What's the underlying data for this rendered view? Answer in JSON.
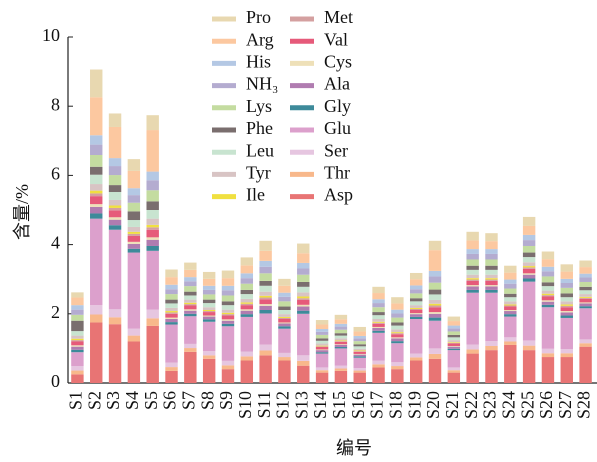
{
  "chart_data": {
    "type": "stacked_bar",
    "x_label": "编号",
    "y_label": "含量/%",
    "categories": [
      "S1",
      "S2",
      "S3",
      "S4",
      "S5",
      "S6",
      "S7",
      "S8",
      "S9",
      "S10",
      "S11",
      "S12",
      "S13",
      "S14",
      "S15",
      "S16",
      "S17",
      "S18",
      "S19",
      "S20",
      "S21",
      "S22",
      "S23",
      "S24",
      "S25",
      "S26",
      "S27",
      "S28"
    ],
    "ylim": [
      0,
      10
    ],
    "yticks": [
      0,
      2,
      4,
      6,
      8,
      10
    ],
    "series": [
      {
        "name": "Asp",
        "color": "#e87474",
        "values": [
          0.25,
          1.75,
          1.7,
          1.2,
          1.65,
          0.35,
          0.9,
          0.7,
          0.4,
          0.65,
          0.8,
          0.65,
          0.5,
          0.3,
          0.35,
          0.3,
          0.45,
          0.4,
          0.65,
          0.7,
          0.3,
          0.85,
          0.95,
          1.1,
          0.95,
          0.75,
          0.75,
          1.05
        ]
      },
      {
        "name": "Thr",
        "color": "#f8b88b",
        "values": [
          0.11,
          0.23,
          0.2,
          0.17,
          0.22,
          0.11,
          0.11,
          0.1,
          0.11,
          0.12,
          0.14,
          0.1,
          0.14,
          0.07,
          0.07,
          0.06,
          0.09,
          0.09,
          0.09,
          0.14,
          0.07,
          0.12,
          0.12,
          0.1,
          0.13,
          0.11,
          0.11,
          0.1
        ]
      },
      {
        "name": "Ser",
        "color": "#e6c6e0",
        "values": [
          0.13,
          0.27,
          0.23,
          0.2,
          0.25,
          0.13,
          0.12,
          0.12,
          0.13,
          0.14,
          0.17,
          0.12,
          0.16,
          0.08,
          0.08,
          0.07,
          0.11,
          0.11,
          0.11,
          0.16,
          0.08,
          0.14,
          0.14,
          0.12,
          0.15,
          0.13,
          0.12,
          0.11
        ]
      },
      {
        "name": "Glu",
        "color": "#dca0cc",
        "values": [
          0.4,
          2.5,
          2.3,
          2.2,
          1.7,
          1.1,
          0.8,
          0.85,
          1.0,
          1.0,
          0.9,
          0.7,
          1.2,
          0.4,
          0.5,
          0.3,
          0.8,
          0.55,
          1.0,
          0.8,
          0.5,
          1.5,
          1.4,
          0.6,
          1.7,
          1.2,
          0.9,
          0.9
        ]
      },
      {
        "name": "Gly",
        "color": "#3d8a9a",
        "values": [
          0.07,
          0.15,
          0.13,
          0.11,
          0.14,
          0.07,
          0.07,
          0.07,
          0.07,
          0.08,
          0.1,
          0.07,
          0.09,
          0.04,
          0.04,
          0.04,
          0.06,
          0.06,
          0.06,
          0.09,
          0.04,
          0.08,
          0.08,
          0.07,
          0.09,
          0.07,
          0.07,
          0.06
        ]
      },
      {
        "name": "Ala",
        "color": "#b07cb0",
        "values": [
          0.09,
          0.19,
          0.16,
          0.14,
          0.18,
          0.09,
          0.09,
          0.08,
          0.09,
          0.1,
          0.12,
          0.08,
          0.12,
          0.06,
          0.06,
          0.05,
          0.08,
          0.08,
          0.08,
          0.11,
          0.06,
          0.1,
          0.1,
          0.09,
          0.11,
          0.09,
          0.09,
          0.08
        ]
      },
      {
        "name": "Cys",
        "color": "#eee0b8",
        "values": [
          0.04,
          0.08,
          0.07,
          0.06,
          0.07,
          0.04,
          0.04,
          0.03,
          0.04,
          0.04,
          0.05,
          0.03,
          0.05,
          0.02,
          0.02,
          0.02,
          0.03,
          0.03,
          0.03,
          0.05,
          0.02,
          0.04,
          0.04,
          0.03,
          0.04,
          0.04,
          0.04,
          0.03
        ]
      },
      {
        "name": "Val",
        "color": "#e65a7a",
        "values": [
          0.11,
          0.23,
          0.2,
          0.17,
          0.22,
          0.11,
          0.11,
          0.1,
          0.11,
          0.12,
          0.14,
          0.1,
          0.14,
          0.07,
          0.07,
          0.06,
          0.09,
          0.09,
          0.09,
          0.14,
          0.07,
          0.12,
          0.12,
          0.1,
          0.13,
          0.11,
          0.11,
          0.1
        ]
      },
      {
        "name": "Met",
        "color": "#d4a0a0",
        "values": [
          0.04,
          0.08,
          0.07,
          0.06,
          0.07,
          0.04,
          0.04,
          0.03,
          0.04,
          0.04,
          0.05,
          0.03,
          0.05,
          0.02,
          0.02,
          0.02,
          0.03,
          0.03,
          0.03,
          0.05,
          0.02,
          0.04,
          0.04,
          0.03,
          0.04,
          0.04,
          0.04,
          0.03
        ]
      },
      {
        "name": "Ile",
        "color": "#f0e040",
        "values": [
          0.04,
          0.08,
          0.07,
          0.06,
          0.07,
          0.04,
          0.04,
          0.03,
          0.04,
          0.04,
          0.05,
          0.03,
          0.05,
          0.02,
          0.02,
          0.02,
          0.03,
          0.03,
          0.03,
          0.05,
          0.02,
          0.04,
          0.04,
          0.03,
          0.04,
          0.04,
          0.04,
          0.03
        ]
      },
      {
        "name": "Tyr",
        "color": "#d8c4c4",
        "values": [
          0.09,
          0.19,
          0.16,
          0.14,
          0.18,
          0.09,
          0.09,
          0.08,
          0.09,
          0.1,
          0.12,
          0.08,
          0.12,
          0.06,
          0.06,
          0.05,
          0.08,
          0.08,
          0.08,
          0.11,
          0.06,
          0.1,
          0.1,
          0.09,
          0.11,
          0.09,
          0.09,
          0.08
        ]
      },
      {
        "name": "Leu",
        "color": "#c8e4d0",
        "values": [
          0.13,
          0.27,
          0.23,
          0.2,
          0.25,
          0.13,
          0.12,
          0.12,
          0.13,
          0.14,
          0.17,
          0.12,
          0.16,
          0.08,
          0.08,
          0.07,
          0.11,
          0.11,
          0.11,
          0.16,
          0.08,
          0.14,
          0.14,
          0.12,
          0.15,
          0.13,
          0.12,
          0.11
        ]
      },
      {
        "name": "Phe",
        "color": "#7a6e6e",
        "values": [
          0.3,
          0.23,
          0.2,
          0.25,
          0.25,
          0.11,
          0.11,
          0.1,
          0.11,
          0.12,
          0.14,
          0.1,
          0.14,
          0.07,
          0.07,
          0.06,
          0.09,
          0.09,
          0.09,
          0.14,
          0.07,
          0.12,
          0.12,
          0.1,
          0.13,
          0.11,
          0.11,
          0.1
        ]
      },
      {
        "name": "Lys",
        "color": "#c4dca0",
        "values": [
          0.17,
          0.34,
          0.29,
          0.25,
          0.32,
          0.16,
          0.16,
          0.15,
          0.17,
          0.18,
          0.22,
          0.15,
          0.21,
          0.1,
          0.1,
          0.09,
          0.14,
          0.14,
          0.14,
          0.2,
          0.1,
          0.18,
          0.18,
          0.15,
          0.19,
          0.17,
          0.16,
          0.14
        ]
      },
      {
        "name": "NH₃",
        "color": "#b4acd0",
        "values": [
          0.15,
          0.3,
          0.26,
          0.22,
          0.29,
          0.14,
          0.14,
          0.13,
          0.15,
          0.16,
          0.19,
          0.13,
          0.18,
          0.09,
          0.09,
          0.08,
          0.12,
          0.12,
          0.12,
          0.18,
          0.09,
          0.16,
          0.16,
          0.14,
          0.17,
          0.15,
          0.14,
          0.13
        ]
      },
      {
        "name": "His",
        "color": "#b4c8e4",
        "values": [
          0.13,
          0.27,
          0.23,
          0.2,
          0.25,
          0.13,
          0.12,
          0.12,
          0.13,
          0.14,
          0.17,
          0.12,
          0.16,
          0.08,
          0.08,
          0.07,
          0.11,
          0.11,
          0.11,
          0.16,
          0.08,
          0.14,
          0.14,
          0.12,
          0.15,
          0.13,
          0.12,
          0.11
        ]
      },
      {
        "name": "Arg",
        "color": "#fcc8a0",
        "values": [
          0.22,
          1.1,
          0.9,
          0.5,
          1.2,
          0.22,
          0.21,
          0.2,
          0.22,
          0.23,
          0.29,
          0.2,
          0.28,
          0.13,
          0.13,
          0.13,
          0.18,
          0.18,
          0.18,
          0.6,
          0.13,
          0.25,
          0.23,
          0.2,
          0.26,
          0.22,
          0.21,
          0.19
        ]
      },
      {
        "name": "Pro",
        "color": "#e8d8b0",
        "values": [
          0.15,
          0.8,
          0.39,
          0.34,
          0.43,
          0.22,
          0.21,
          0.2,
          0.22,
          0.23,
          0.29,
          0.2,
          0.28,
          0.13,
          0.13,
          0.13,
          0.18,
          0.18,
          0.18,
          0.27,
          0.13,
          0.25,
          0.23,
          0.2,
          0.26,
          0.22,
          0.21,
          0.19
        ]
      }
    ]
  }
}
